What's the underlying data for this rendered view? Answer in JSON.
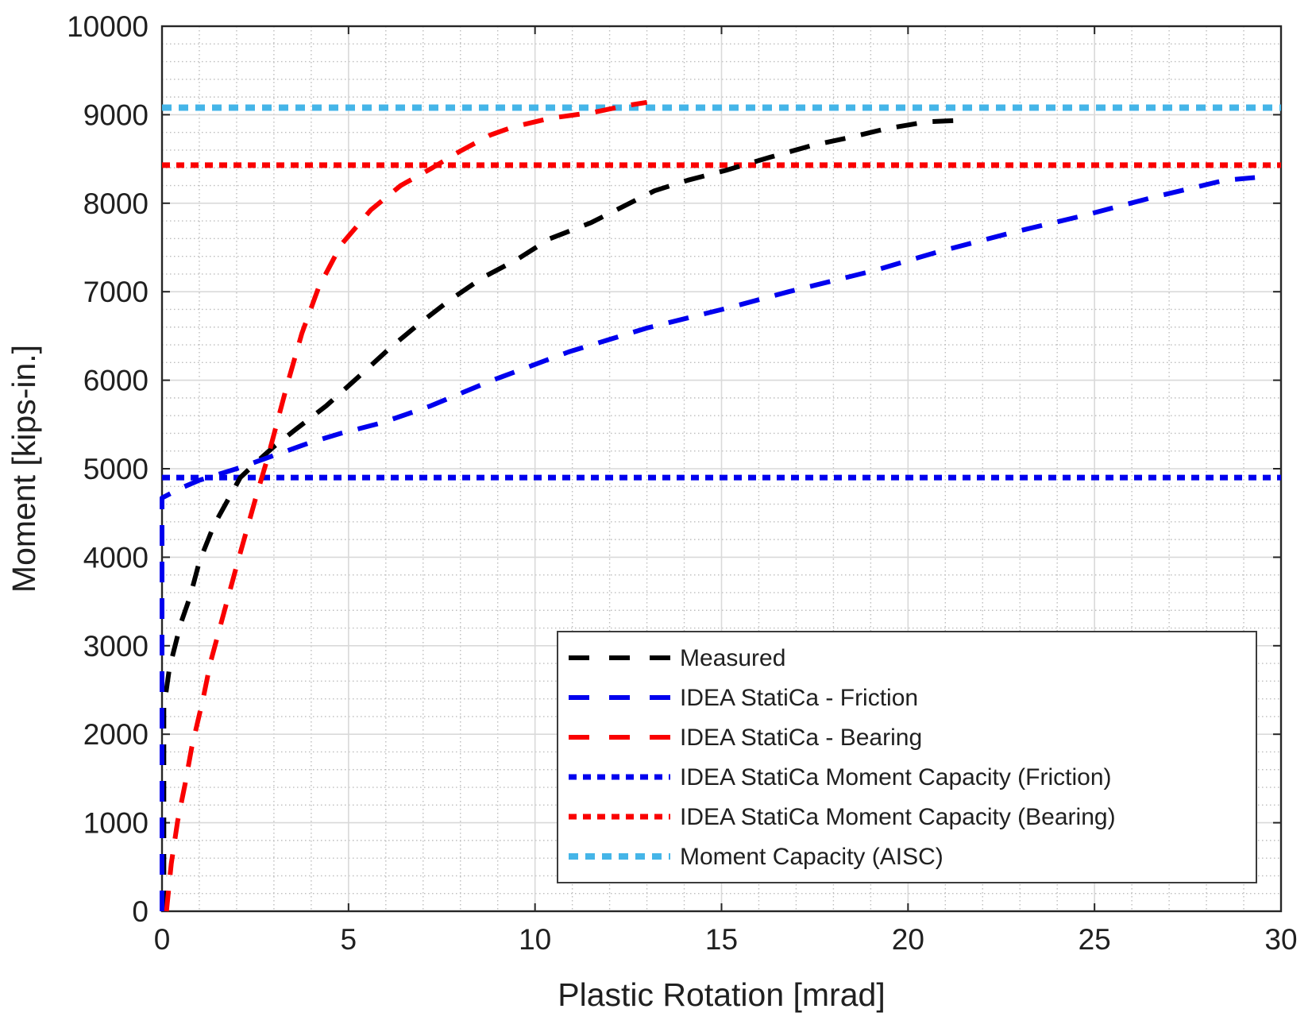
{
  "chart_data": {
    "type": "line",
    "title": "",
    "xlabel": "Plastic Rotation [mrad]",
    "ylabel": "Moment [kips-in.]",
    "xlim": [
      0,
      30
    ],
    "ylim": [
      0,
      10000
    ],
    "xticks": [
      0,
      5,
      10,
      15,
      20,
      25,
      30
    ],
    "yticks": [
      0,
      1000,
      2000,
      3000,
      4000,
      5000,
      6000,
      7000,
      8000,
      9000,
      10000
    ],
    "x_minor_step": 1,
    "y_minor_step": 200,
    "grid": "major-solid, minor-dotted",
    "legend_position": "inside-lower-right",
    "colors": {
      "measured": "#000000",
      "friction": "#0000ee",
      "bearing": "#fa0000",
      "aisc": "#45b5e8",
      "axis": "#262626",
      "grid_major": "#d9d9d9",
      "grid_minor": "#bdbdbd"
    },
    "series": [
      {
        "name": "Measured",
        "color": "#000000",
        "style": "dashed",
        "points": [
          [
            0.05,
            0
          ],
          [
            0.05,
            1200
          ],
          [
            0.05,
            2300
          ],
          [
            0.2,
            2750
          ],
          [
            0.5,
            3250
          ],
          [
            0.75,
            3550
          ],
          [
            1.0,
            3950
          ],
          [
            1.4,
            4370
          ],
          [
            2.1,
            4900
          ],
          [
            2.6,
            5100
          ],
          [
            3.0,
            5250
          ],
          [
            3.6,
            5450
          ],
          [
            4.4,
            5710
          ],
          [
            5.3,
            6050
          ],
          [
            6.1,
            6360
          ],
          [
            6.9,
            6640
          ],
          [
            7.7,
            6900
          ],
          [
            8.6,
            7160
          ],
          [
            9.5,
            7360
          ],
          [
            10.4,
            7600
          ],
          [
            11.5,
            7780
          ],
          [
            12.3,
            7950
          ],
          [
            13.2,
            8140
          ],
          [
            14.1,
            8260
          ],
          [
            15.1,
            8370
          ],
          [
            16.3,
            8520
          ],
          [
            17.4,
            8650
          ],
          [
            18.4,
            8740
          ],
          [
            19.4,
            8840
          ],
          [
            20.5,
            8920
          ],
          [
            21.6,
            8940
          ]
        ]
      },
      {
        "name": "IDEA StatiCa - Friction",
        "color": "#0000ee",
        "style": "dashed",
        "points": [
          [
            0,
            0
          ],
          [
            0,
            4670
          ],
          [
            0.5,
            4780
          ],
          [
            1.0,
            4870
          ],
          [
            2.0,
            5000
          ],
          [
            3.0,
            5150
          ],
          [
            4.0,
            5300
          ],
          [
            4.8,
            5400
          ],
          [
            5.9,
            5520
          ],
          [
            7.2,
            5710
          ],
          [
            8.8,
            5990
          ],
          [
            10.9,
            6320
          ],
          [
            13.0,
            6590
          ],
          [
            15.2,
            6820
          ],
          [
            16.8,
            7000
          ],
          [
            19.1,
            7240
          ],
          [
            20.8,
            7450
          ],
          [
            22.8,
            7670
          ],
          [
            24.7,
            7860
          ],
          [
            26.6,
            8070
          ],
          [
            28.5,
            8260
          ],
          [
            29.3,
            8290
          ]
        ]
      },
      {
        "name": "IDEA StatiCa - Bearing",
        "color": "#fa0000",
        "style": "dashed",
        "points": [
          [
            0.12,
            0
          ],
          [
            0.25,
            540
          ],
          [
            0.42,
            1020
          ],
          [
            0.62,
            1440
          ],
          [
            0.8,
            1860
          ],
          [
            1.1,
            2400
          ],
          [
            1.3,
            2815
          ],
          [
            2.0,
            3900
          ],
          [
            2.5,
            4650
          ],
          [
            2.85,
            5150
          ],
          [
            3.35,
            5940
          ],
          [
            3.75,
            6530
          ],
          [
            4.2,
            7050
          ],
          [
            4.8,
            7530
          ],
          [
            5.6,
            7925
          ],
          [
            6.4,
            8200
          ],
          [
            7.25,
            8400
          ],
          [
            8.0,
            8590
          ],
          [
            8.8,
            8770
          ],
          [
            9.4,
            8860
          ],
          [
            10.4,
            8960
          ],
          [
            11.6,
            9030
          ],
          [
            12.4,
            9100
          ],
          [
            13.0,
            9140
          ]
        ]
      },
      {
        "name": "IDEA StatiCa Moment Capacity (Friction)",
        "color": "#0000ee",
        "style": "dotted",
        "y": 4900
      },
      {
        "name": "IDEA StatiCa Moment Capacity (Bearing)",
        "color": "#fa0000",
        "style": "dotted",
        "y": 8430
      },
      {
        "name": "Moment Capacity (AISC)",
        "color": "#45b5e8",
        "style": "dotted-thick",
        "y": 9080
      }
    ]
  }
}
